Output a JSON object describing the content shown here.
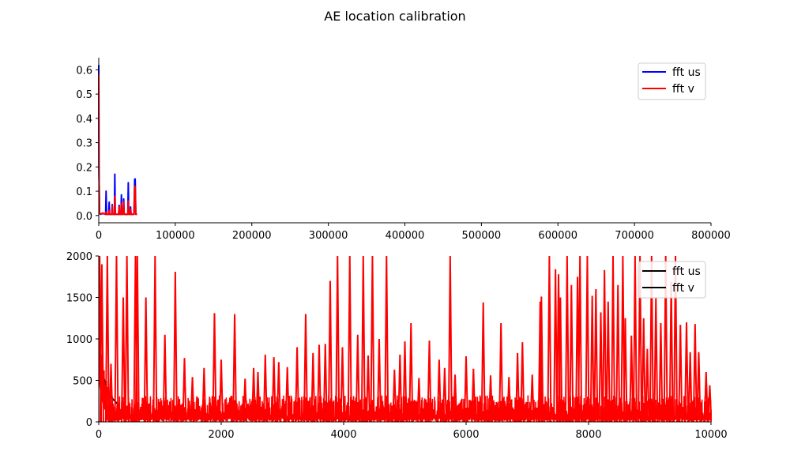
{
  "figure": {
    "title": "AE location calibration"
  },
  "chart_data": [
    {
      "type": "line",
      "title": "",
      "xlabel": "",
      "ylabel": "",
      "xlim": [
        0,
        800000
      ],
      "ylim": [
        -0.03,
        0.65
      ],
      "xticks": [
        0,
        100000,
        200000,
        300000,
        400000,
        500000,
        600000,
        700000,
        800000
      ],
      "yticks": [
        0.0,
        0.1,
        0.2,
        0.3,
        0.4,
        0.5,
        0.6
      ],
      "grid": false,
      "legend_position": "top-right",
      "series": [
        {
          "name": "fft us",
          "color": "#0000ff",
          "x": [
            0,
            300,
            1000,
            2000,
            5000,
            9000,
            9600,
            10200,
            13000,
            13600,
            14200,
            17000,
            17600,
            18200,
            20500,
            21000,
            21600,
            22300,
            26000,
            26600,
            27200,
            29000,
            29600,
            30200,
            32000,
            32600,
            33200,
            38000,
            38600,
            39200,
            41000,
            41600,
            42200,
            46000,
            47000,
            47600,
            48400,
            49000,
            50000
          ],
          "y": [
            0.62,
            0.2,
            0.01,
            0.005,
            0.008,
            0.005,
            0.1,
            0.005,
            0.005,
            0.055,
            0.005,
            0.005,
            0.045,
            0.005,
            0.005,
            0.17,
            0.005,
            0.005,
            0.005,
            0.042,
            0.005,
            0.005,
            0.085,
            0.005,
            0.005,
            0.068,
            0.005,
            0.005,
            0.135,
            0.005,
            0.005,
            0.035,
            0.005,
            0.005,
            0.15,
            0.15,
            0.005,
            0.005,
            0.005
          ]
        },
        {
          "name": "fft v",
          "color": "#ff0000",
          "x": [
            0,
            300,
            1000,
            2000,
            5000,
            9000,
            9600,
            10200,
            13000,
            13600,
            14200,
            17000,
            17600,
            18200,
            20500,
            21000,
            21600,
            22300,
            26000,
            26600,
            27200,
            29000,
            29600,
            30200,
            32000,
            32600,
            33200,
            38000,
            38600,
            39200,
            41000,
            41600,
            42200,
            46000,
            47000,
            47600,
            48400,
            49000,
            50000
          ],
          "y": [
            0.58,
            0.18,
            0.012,
            0.006,
            0.01,
            0.005,
            0.015,
            0.005,
            0.005,
            0.02,
            0.005,
            0.005,
            0.04,
            0.005,
            0.005,
            0.08,
            0.005,
            0.005,
            0.005,
            0.035,
            0.005,
            0.005,
            0.05,
            0.005,
            0.005,
            0.055,
            0.005,
            0.005,
            0.06,
            0.005,
            0.005,
            0.025,
            0.005,
            0.005,
            0.12,
            0.12,
            0.005,
            0.005,
            0.005
          ]
        }
      ]
    },
    {
      "type": "line",
      "title": "",
      "xlabel": "",
      "ylabel": "",
      "xlim": [
        0,
        10000
      ],
      "ylim": [
        0,
        2000
      ],
      "xticks": [
        0,
        2000,
        4000,
        6000,
        8000,
        10000
      ],
      "yticks": [
        0,
        500,
        1000,
        1500,
        2000
      ],
      "grid": false,
      "legend_position": "top-right",
      "legend_handle_color": "#000000",
      "series": [
        {
          "name": "fft us",
          "color": "#000000",
          "x": [
            0,
            20,
            60,
            120,
            200,
            300
          ],
          "y": [
            1150,
            900,
            600,
            420,
            300,
            220
          ]
        },
        {
          "name": "fft v",
          "color": "#ff0000"
        }
      ],
      "spikes": {
        "x": [
          15,
          50,
          140,
          200,
          290,
          400,
          460,
          600,
          630,
          770,
          920,
          1080,
          1250,
          1400,
          1530,
          1720,
          1890,
          2000,
          2220,
          2390,
          2530,
          2600,
          2720,
          2860,
          2940,
          3080,
          3240,
          3380,
          3500,
          3600,
          3700,
          3780,
          3900,
          3980,
          4100,
          4230,
          4320,
          4400,
          4470,
          4580,
          4700,
          4830,
          4920,
          5000,
          5100,
          5230,
          5400,
          5560,
          5650,
          5740,
          5820,
          6000,
          6120,
          6280,
          6400,
          6570,
          6700,
          6840,
          6920,
          7080,
          7210,
          7230,
          7360,
          7460,
          7510,
          7540,
          7650,
          7720,
          7820,
          7860,
          7980,
          8060,
          8120,
          8200,
          8260,
          8320,
          8400,
          8480,
          8560,
          8600,
          8700,
          8760,
          8840,
          8900,
          8960,
          9030,
          9100,
          9180,
          9260,
          9350,
          9420,
          9500,
          9600,
          9660,
          9740,
          9800,
          9920,
          9980
        ],
        "y": [
          2000,
          1900,
          2000,
          700,
          2000,
          1500,
          2000,
          2000,
          2000,
          1500,
          2000,
          1050,
          1810,
          770,
          540,
          650,
          1310,
          750,
          1300,
          520,
          650,
          600,
          810,
          780,
          720,
          660,
          900,
          1300,
          830,
          930,
          940,
          1700,
          2000,
          900,
          2000,
          1050,
          2000,
          800,
          2000,
          1000,
          2000,
          630,
          810,
          970,
          1190,
          530,
          980,
          750,
          650,
          2000,
          570,
          790,
          640,
          1440,
          560,
          1190,
          540,
          830,
          960,
          570,
          1450,
          1510,
          2000,
          1840,
          1780,
          1500,
          2000,
          1650,
          1750,
          2000,
          2000,
          1520,
          1600,
          1320,
          1830,
          1450,
          2000,
          1650,
          2000,
          1250,
          1040,
          2000,
          2000,
          1250,
          880,
          2000,
          1500,
          1190,
          2000,
          1690,
          2000,
          1170,
          1200,
          840,
          1180,
          840,
          600,
          440
        ]
      },
      "noise_band": [
        20,
        320
      ]
    }
  ]
}
